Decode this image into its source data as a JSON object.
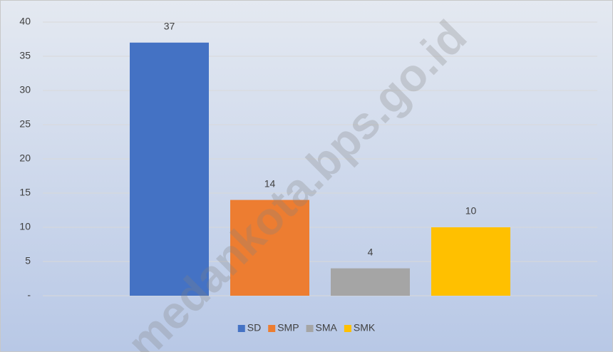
{
  "chart_data": {
    "type": "bar",
    "categories": [
      null
    ],
    "series": [
      {
        "name": "SD",
        "color": "#4472c4",
        "values": [
          37
        ]
      },
      {
        "name": "SMP",
        "color": "#ed7d31",
        "values": [
          14
        ]
      },
      {
        "name": "SMA",
        "color": "#a5a5a5",
        "values": [
          4
        ]
      },
      {
        "name": "SMK",
        "color": "#ffc000",
        "values": [
          10
        ]
      }
    ],
    "ylim": [
      0,
      40
    ],
    "yticks": [
      {
        "value": 0,
        "label": "-"
      },
      5,
      10,
      15,
      20,
      25,
      30,
      35,
      40
    ],
    "grid": true,
    "legend": "bottom",
    "watermark": "medankota.bps.go.id"
  }
}
